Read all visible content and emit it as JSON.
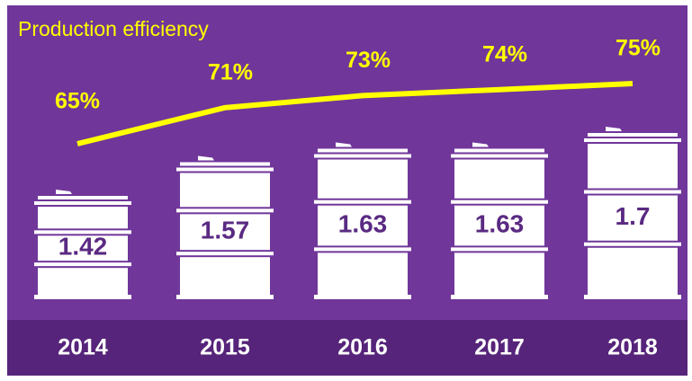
{
  "chart_data": {
    "type": "bar",
    "title": "Production efficiency",
    "categories": [
      "2014",
      "2015",
      "2016",
      "2017",
      "2018"
    ],
    "background": "#70369a",
    "series": [
      {
        "type": "bar",
        "color": "#ffffff",
        "values": [
          1.42,
          1.57,
          1.63,
          1.63,
          1.7
        ]
      },
      {
        "type": "line",
        "color": "#ffff00",
        "values": [
          65,
          71,
          73,
          74,
          75
        ],
        "value_labels": [
          "65%",
          "71%",
          "73%",
          "74%",
          "75%"
        ]
      }
    ]
  }
}
